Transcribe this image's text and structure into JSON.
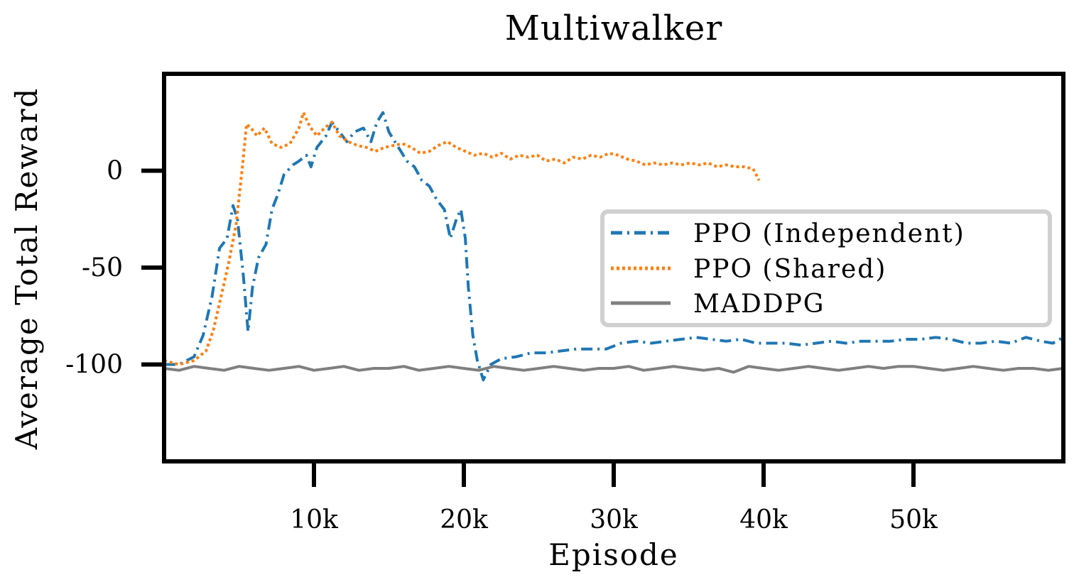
{
  "chart_data": {
    "type": "line",
    "title": "Multiwalker",
    "xlabel": "Episode",
    "ylabel": "Average Total Reward",
    "xlim": [
      0,
      60000
    ],
    "ylim": [
      -150,
      50
    ],
    "xticks": [
      {
        "value": 10000,
        "label": "10k"
      },
      {
        "value": 20000,
        "label": "20k"
      },
      {
        "value": 30000,
        "label": "30k"
      },
      {
        "value": 40000,
        "label": "40k"
      },
      {
        "value": 50000,
        "label": "50k"
      }
    ],
    "yticks": [
      {
        "value": 0,
        "label": "0"
      },
      {
        "value": -50,
        "label": "-50"
      },
      {
        "value": -100,
        "label": "-100"
      }
    ],
    "grid": false,
    "legend_position": "center-right",
    "series": [
      {
        "name": "PPO (Independent)",
        "color": "#1f77b4",
        "style": "dashdot",
        "points": [
          [
            0,
            -100
          ],
          [
            1000,
            -100
          ],
          [
            2000,
            -96
          ],
          [
            2600,
            -85
          ],
          [
            3200,
            -65
          ],
          [
            3700,
            -40
          ],
          [
            4200,
            -35
          ],
          [
            4600,
            -18
          ],
          [
            4900,
            -25
          ],
          [
            5300,
            -55
          ],
          [
            5600,
            -83
          ],
          [
            5900,
            -60
          ],
          [
            6300,
            -45
          ],
          [
            6800,
            -38
          ],
          [
            7200,
            -20
          ],
          [
            7600,
            -12
          ],
          [
            8000,
            -2
          ],
          [
            8600,
            3
          ],
          [
            9000,
            5
          ],
          [
            9500,
            8
          ],
          [
            9800,
            2
          ],
          [
            10200,
            12
          ],
          [
            10800,
            18
          ],
          [
            11200,
            25
          ],
          [
            11700,
            20
          ],
          [
            12200,
            15
          ],
          [
            12700,
            20
          ],
          [
            13300,
            22
          ],
          [
            13800,
            15
          ],
          [
            14200,
            25
          ],
          [
            14600,
            30
          ],
          [
            15000,
            20
          ],
          [
            15400,
            15
          ],
          [
            15800,
            10
          ],
          [
            16200,
            5
          ],
          [
            16700,
            2
          ],
          [
            17200,
            -5
          ],
          [
            17700,
            -8
          ],
          [
            18200,
            -15
          ],
          [
            18700,
            -20
          ],
          [
            19100,
            -35
          ],
          [
            19500,
            -25
          ],
          [
            19800,
            -20
          ],
          [
            20100,
            -35
          ],
          [
            20300,
            -60
          ],
          [
            20600,
            -85
          ],
          [
            20900,
            -98
          ],
          [
            21300,
            -108
          ],
          [
            21800,
            -100
          ],
          [
            22500,
            -97
          ],
          [
            23500,
            -96
          ],
          [
            24500,
            -94
          ],
          [
            25500,
            -94
          ],
          [
            26500,
            -93
          ],
          [
            27500,
            -92
          ],
          [
            28500,
            -92
          ],
          [
            29500,
            -92
          ],
          [
            30500,
            -89
          ],
          [
            31500,
            -88
          ],
          [
            32500,
            -89
          ],
          [
            33500,
            -88
          ],
          [
            34500,
            -87
          ],
          [
            35500,
            -86
          ],
          [
            36500,
            -87
          ],
          [
            37500,
            -88
          ],
          [
            38500,
            -87
          ],
          [
            39500,
            -89
          ],
          [
            40500,
            -89
          ],
          [
            41500,
            -89
          ],
          [
            42500,
            -90
          ],
          [
            43500,
            -89
          ],
          [
            44500,
            -88
          ],
          [
            45500,
            -89
          ],
          [
            46500,
            -88
          ],
          [
            47500,
            -88
          ],
          [
            48500,
            -88
          ],
          [
            49500,
            -87
          ],
          [
            50500,
            -87
          ],
          [
            51500,
            -86
          ],
          [
            52500,
            -87
          ],
          [
            53500,
            -89
          ],
          [
            54500,
            -89
          ],
          [
            55500,
            -88
          ],
          [
            56500,
            -89
          ],
          [
            57500,
            -86
          ],
          [
            58500,
            -88
          ],
          [
            59300,
            -89
          ],
          [
            60000,
            -86
          ]
        ]
      },
      {
        "name": "PPO (Shared)",
        "color": "#ff7f0e",
        "style": "dotted",
        "points": [
          [
            0,
            -98
          ],
          [
            1000,
            -100
          ],
          [
            2000,
            -98
          ],
          [
            2800,
            -93
          ],
          [
            3300,
            -82
          ],
          [
            3800,
            -65
          ],
          [
            4300,
            -48
          ],
          [
            4800,
            -28
          ],
          [
            5200,
            0
          ],
          [
            5500,
            24
          ],
          [
            5800,
            22
          ],
          [
            6200,
            18
          ],
          [
            6700,
            22
          ],
          [
            7200,
            14
          ],
          [
            7800,
            12
          ],
          [
            8400,
            14
          ],
          [
            9000,
            22
          ],
          [
            9300,
            30
          ],
          [
            9700,
            23
          ],
          [
            10200,
            18
          ],
          [
            10700,
            22
          ],
          [
            11200,
            25
          ],
          [
            11700,
            18
          ],
          [
            12300,
            15
          ],
          [
            12900,
            13
          ],
          [
            13500,
            12
          ],
          [
            14100,
            10
          ],
          [
            14700,
            12
          ],
          [
            15300,
            13
          ],
          [
            15900,
            14
          ],
          [
            16500,
            12
          ],
          [
            17100,
            9
          ],
          [
            17700,
            10
          ],
          [
            18300,
            13
          ],
          [
            18900,
            15
          ],
          [
            19500,
            12
          ],
          [
            20100,
            10
          ],
          [
            20700,
            8
          ],
          [
            21300,
            9
          ],
          [
            21900,
            7
          ],
          [
            22500,
            9
          ],
          [
            23100,
            6
          ],
          [
            23700,
            8
          ],
          [
            24300,
            7
          ],
          [
            24900,
            8
          ],
          [
            25500,
            5
          ],
          [
            26100,
            6
          ],
          [
            26700,
            4
          ],
          [
            27300,
            7
          ],
          [
            27900,
            6
          ],
          [
            28500,
            8
          ],
          [
            29100,
            7
          ],
          [
            29700,
            9
          ],
          [
            30300,
            8
          ],
          [
            30900,
            6
          ],
          [
            31500,
            5
          ],
          [
            32100,
            3
          ],
          [
            32700,
            4
          ],
          [
            33300,
            3
          ],
          [
            33900,
            4
          ],
          [
            34500,
            3
          ],
          [
            35100,
            4
          ],
          [
            35700,
            3
          ],
          [
            36300,
            4
          ],
          [
            36900,
            2
          ],
          [
            37500,
            3
          ],
          [
            38100,
            2
          ],
          [
            38700,
            2
          ],
          [
            39300,
            1
          ],
          [
            39700,
            -5
          ]
        ]
      },
      {
        "name": "MADDPG",
        "color": "#7f7f7f",
        "style": "solid",
        "points": [
          [
            0,
            -102
          ],
          [
            1000,
            -103
          ],
          [
            2000,
            -101
          ],
          [
            3000,
            -102
          ],
          [
            4000,
            -103
          ],
          [
            5000,
            -101
          ],
          [
            6000,
            -102
          ],
          [
            7000,
            -103
          ],
          [
            8000,
            -102
          ],
          [
            9000,
            -101
          ],
          [
            10000,
            -103
          ],
          [
            11000,
            -102
          ],
          [
            12000,
            -101
          ],
          [
            13000,
            -103
          ],
          [
            14000,
            -102
          ],
          [
            15000,
            -102
          ],
          [
            16000,
            -101
          ],
          [
            17000,
            -103
          ],
          [
            18000,
            -102
          ],
          [
            19000,
            -101
          ],
          [
            20000,
            -102
          ],
          [
            21000,
            -103
          ],
          [
            22000,
            -101
          ],
          [
            23000,
            -102
          ],
          [
            24000,
            -103
          ],
          [
            25000,
            -102
          ],
          [
            26000,
            -101
          ],
          [
            27000,
            -102
          ],
          [
            28000,
            -103
          ],
          [
            29000,
            -102
          ],
          [
            30000,
            -102
          ],
          [
            31000,
            -101
          ],
          [
            32000,
            -103
          ],
          [
            33000,
            -102
          ],
          [
            34000,
            -101
          ],
          [
            35000,
            -102
          ],
          [
            36000,
            -103
          ],
          [
            37000,
            -102
          ],
          [
            38000,
            -104
          ],
          [
            39000,
            -101
          ],
          [
            40000,
            -102
          ],
          [
            41000,
            -103
          ],
          [
            42000,
            -102
          ],
          [
            43000,
            -101
          ],
          [
            44000,
            -102
          ],
          [
            45000,
            -103
          ],
          [
            46000,
            -102
          ],
          [
            47000,
            -101
          ],
          [
            48000,
            -102
          ],
          [
            49000,
            -101
          ],
          [
            50000,
            -101
          ],
          [
            51000,
            -102
          ],
          [
            52000,
            -103
          ],
          [
            53000,
            -102
          ],
          [
            54000,
            -101
          ],
          [
            55000,
            -102
          ],
          [
            56000,
            -103
          ],
          [
            57000,
            -102
          ],
          [
            58000,
            -102
          ],
          [
            59000,
            -103
          ],
          [
            60000,
            -102
          ]
        ]
      }
    ]
  }
}
